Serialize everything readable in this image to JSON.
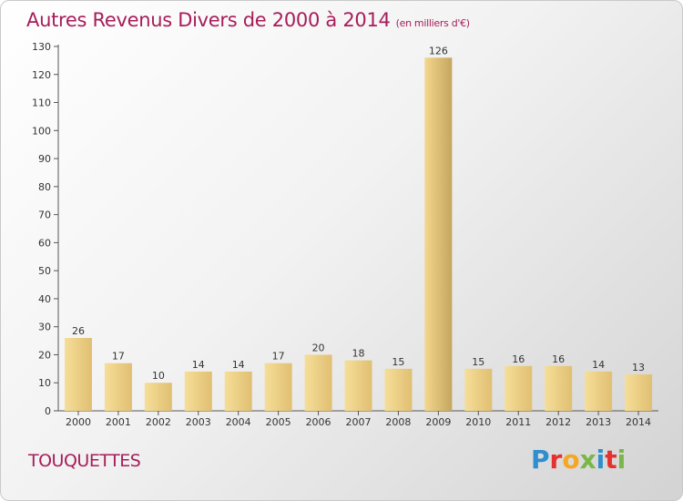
{
  "header": {
    "title": "Autres Revenus Divers de 2000 à 2014",
    "unit": "(en milliers d'€)"
  },
  "footer": {
    "commune": "TOUQUETTES",
    "logo": "Proxiti",
    "logo_colors": [
      "#2f8fce",
      "#e6312e",
      "#f5a623",
      "#7ab648",
      "#2f8fce",
      "#e6312e",
      "#7ab648"
    ]
  },
  "colors": {
    "title": "#a71d5a",
    "bar_light": "#f6de98",
    "bar_dark": "#e0bf72",
    "bar_highlight_light": "#f4d68c",
    "bar_highlight_dark": "#c4a660"
  },
  "chart_data": {
    "type": "bar",
    "title": "Autres Revenus Divers de 2000 à 2014",
    "categories": [
      "2000",
      "2001",
      "2002",
      "2003",
      "2004",
      "2005",
      "2006",
      "2007",
      "2008",
      "2009",
      "2010",
      "2011",
      "2012",
      "2013",
      "2014"
    ],
    "values": [
      26,
      17,
      10,
      14,
      14,
      17,
      20,
      18,
      15,
      126,
      15,
      16,
      16,
      14,
      13
    ],
    "ylim": [
      0,
      130
    ],
    "yticks": [
      0,
      10,
      20,
      30,
      40,
      50,
      60,
      70,
      80,
      90,
      100,
      110,
      120,
      130
    ],
    "xlabel": "",
    "ylabel": "",
    "grid": false,
    "data_labels": true,
    "highlight_index": 9
  }
}
